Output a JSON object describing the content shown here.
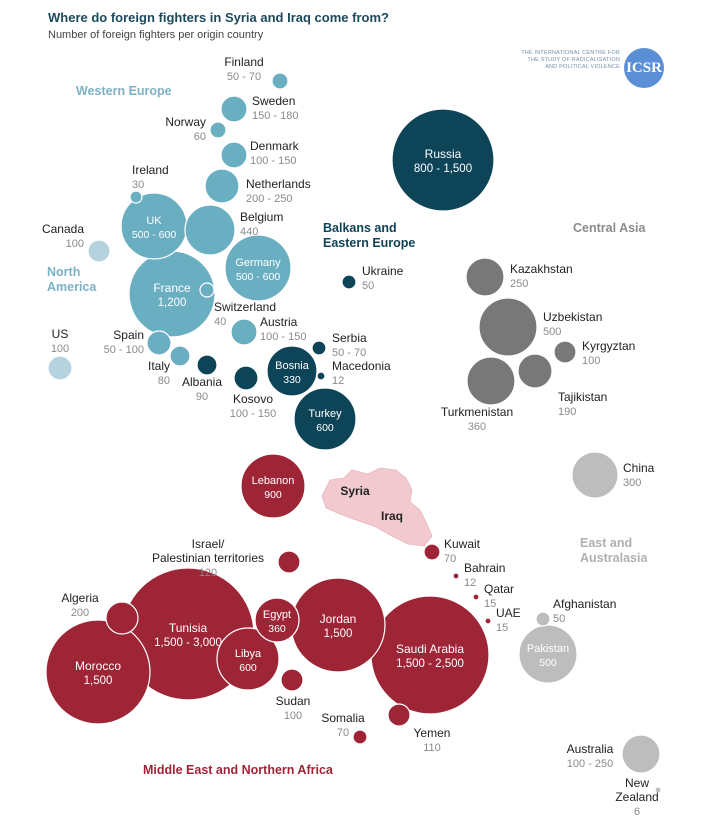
{
  "title": "Where do foreign fighters in Syria and Iraq come from?",
  "subtitle": "Number of foreign fighters per origin country",
  "logo": {
    "text": "THE INTERNATIONAL CENTRE FOR THE STUDY OF RADICALISATION AND POLITICAL VIOLENCE",
    "badge": "ICSR"
  },
  "colors": {
    "western_europe": "#6aaec2",
    "north_america": "#b4d3df",
    "balkans": "#0e4457",
    "central_asia": "#787878",
    "east_asia": "#bdbdbd",
    "mena": "#9e2536",
    "mena_light": "#f2c9cf",
    "group_west": "#7cb2c6",
    "group_balkans": "#0e4457",
    "group_central": "#8c8c8c",
    "group_east": "#b0b0b0",
    "group_mena": "#9e2536"
  },
  "chart_data": {
    "type": "bubble",
    "title": "Where do foreign fighters in Syria and Iraq come from?",
    "subtitle": "Number of foreign fighters per origin country",
    "groups": [
      {
        "key": "group_west",
        "label": "Western Europe"
      },
      {
        "key": "group_na",
        "label": "North America"
      },
      {
        "key": "group_balkans",
        "label": "Balkans and Eastern Europe"
      },
      {
        "key": "group_central",
        "label": "Central Asia"
      },
      {
        "key": "group_east",
        "label": "East and Australasia"
      },
      {
        "key": "group_mena",
        "label": "Middle East and Northern Africa"
      }
    ],
    "map_labels": [
      "Syria",
      "Iraq"
    ],
    "countries": [
      {
        "name": "Finland",
        "range": "50 - 70",
        "value": 60,
        "region": "western_europe"
      },
      {
        "name": "Sweden",
        "range": "150 - 180",
        "value": 165,
        "region": "western_europe"
      },
      {
        "name": "Norway",
        "range": "60",
        "value": 60,
        "region": "western_europe"
      },
      {
        "name": "Denmark",
        "range": "100 - 150",
        "value": 125,
        "region": "western_europe"
      },
      {
        "name": "Ireland",
        "range": "30",
        "value": 30,
        "region": "western_europe"
      },
      {
        "name": "Netherlands",
        "range": "200 - 250",
        "value": 225,
        "region": "western_europe"
      },
      {
        "name": "UK",
        "range": "500 - 600",
        "value": 550,
        "region": "western_europe"
      },
      {
        "name": "Belgium",
        "range": "440",
        "value": 440,
        "region": "western_europe"
      },
      {
        "name": "Germany",
        "range": "500 - 600",
        "value": 550,
        "region": "western_europe"
      },
      {
        "name": "France",
        "range": "1,200",
        "value": 1200,
        "region": "western_europe"
      },
      {
        "name": "Switzerland",
        "range": "40",
        "value": 40,
        "region": "western_europe"
      },
      {
        "name": "Austria",
        "range": "100 - 150",
        "value": 125,
        "region": "western_europe"
      },
      {
        "name": "Spain",
        "range": "50 - 100",
        "value": 75,
        "region": "western_europe"
      },
      {
        "name": "Italy",
        "range": "80",
        "value": 80,
        "region": "western_europe"
      },
      {
        "name": "Canada",
        "range": "100",
        "value": 100,
        "region": "north_america"
      },
      {
        "name": "US",
        "range": "100",
        "value": 100,
        "region": "north_america"
      },
      {
        "name": "Russia",
        "range": "800 - 1,500",
        "value": 1150,
        "region": "balkans"
      },
      {
        "name": "Ukraine",
        "range": "50",
        "value": 50,
        "region": "balkans"
      },
      {
        "name": "Serbia",
        "range": "50 - 70",
        "value": 60,
        "region": "balkans"
      },
      {
        "name": "Macedonia",
        "range": "12",
        "value": 12,
        "region": "balkans"
      },
      {
        "name": "Bosnia",
        "range": "330",
        "value": 330,
        "region": "balkans"
      },
      {
        "name": "Albania",
        "range": "90",
        "value": 90,
        "region": "balkans"
      },
      {
        "name": "Kosovo",
        "range": "100 - 150",
        "value": 125,
        "region": "balkans"
      },
      {
        "name": "Turkey",
        "range": "600",
        "value": 600,
        "region": "balkans"
      },
      {
        "name": "Kazakhstan",
        "range": "250",
        "value": 250,
        "region": "central_asia"
      },
      {
        "name": "Uzbekistan",
        "range": "500",
        "value": 500,
        "region": "central_asia"
      },
      {
        "name": "Kyrgyztan",
        "range": "100",
        "value": 100,
        "region": "central_asia"
      },
      {
        "name": "Tajikistan",
        "range": "190",
        "value": 190,
        "region": "central_asia"
      },
      {
        "name": "Turkmenistan",
        "range": "360",
        "value": 360,
        "region": "central_asia"
      },
      {
        "name": "China",
        "range": "300",
        "value": 300,
        "region": "east_asia"
      },
      {
        "name": "Afghanistan",
        "range": "50",
        "value": 50,
        "region": "east_asia"
      },
      {
        "name": "Pakistan",
        "range": "500",
        "value": 500,
        "region": "east_asia"
      },
      {
        "name": "Australia",
        "range": "100 - 250",
        "value": 175,
        "region": "east_asia"
      },
      {
        "name": "New Zealand",
        "range": "6",
        "value": 6,
        "region": "east_asia"
      },
      {
        "name": "Lebanon",
        "range": "900",
        "value": 900,
        "region": "mena"
      },
      {
        "name": "Israel/ Palestinian territories",
        "range": "120",
        "value": 120,
        "region": "mena"
      },
      {
        "name": "Kuwait",
        "range": "70",
        "value": 70,
        "region": "mena"
      },
      {
        "name": "Bahrain",
        "range": "12",
        "value": 12,
        "region": "mena"
      },
      {
        "name": "Qatar",
        "range": "15",
        "value": 15,
        "region": "mena"
      },
      {
        "name": "UAE",
        "range": "15",
        "value": 15,
        "region": "mena"
      },
      {
        "name": "Algeria",
        "range": "200",
        "value": 200,
        "region": "mena"
      },
      {
        "name": "Tunisia",
        "range": "1,500 - 3,000",
        "value": 2250,
        "region": "mena"
      },
      {
        "name": "Egypt",
        "range": "360",
        "value": 360,
        "region": "mena"
      },
      {
        "name": "Jordan",
        "range": "1,500",
        "value": 1500,
        "region": "mena"
      },
      {
        "name": "Morocco",
        "range": "1,500",
        "value": 1500,
        "region": "mena"
      },
      {
        "name": "Libya",
        "range": "600",
        "value": 600,
        "region": "mena"
      },
      {
        "name": "Saudi Arabia",
        "range": "1,500 - 2,500",
        "value": 2000,
        "region": "mena"
      },
      {
        "name": "Sudan",
        "range": "100",
        "value": 100,
        "region": "mena"
      },
      {
        "name": "Somalia",
        "range": "70",
        "value": 70,
        "region": "mena"
      },
      {
        "name": "Yemen",
        "range": "110",
        "value": 110,
        "region": "mena"
      }
    ]
  }
}
